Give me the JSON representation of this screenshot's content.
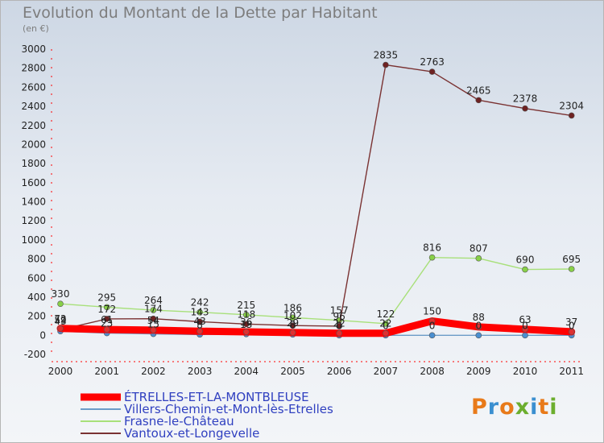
{
  "chart_data": {
    "type": "line",
    "title": "Evolution du Montant de la Dette par Habitant",
    "subtitle": "(en €)",
    "x": [
      "2000",
      "2001",
      "2002",
      "2003",
      "2004",
      "2005",
      "2006",
      "2007",
      "2008",
      "2009",
      "2010",
      "2011"
    ],
    "ylim": [
      -200,
      3000
    ],
    "yticks": [
      -200,
      0,
      200,
      400,
      600,
      800,
      1000,
      1200,
      1400,
      1600,
      1800,
      2000,
      2200,
      2400,
      2600,
      2800,
      3000
    ],
    "grid": false,
    "legend_position": "bottom-left",
    "series": [
      {
        "name": "ÉTRELLES-ET-LA-MONTBLEUSE",
        "color": "#ff0000",
        "marker": "#e03030",
        "width": 9,
        "values": [
          72,
          61,
          54,
          43,
          36,
          29,
          22,
          22,
          150,
          88,
          63,
          37
        ]
      },
      {
        "name": "Villers-Chemin-et-Mont-lès-Etrelles",
        "color": "#6b9bc7",
        "marker": "#4a8fd0",
        "width": 1.4,
        "values": [
          43,
          23,
          15,
          8,
          13,
          8,
          0,
          0,
          0,
          0,
          0,
          0
        ]
      },
      {
        "name": "Frasne-le-Château",
        "color": "#a8e07a",
        "marker": "#88d048",
        "width": 1.4,
        "values": [
          330,
          295,
          264,
          242,
          215,
          186,
          157,
          122,
          816,
          807,
          690,
          695
        ]
      },
      {
        "name": "Vantoux-et-Longevelle",
        "color": "#7a3232",
        "marker": "#6e2222",
        "width": 1.4,
        "values": [
          59,
          172,
          174,
          143,
          118,
          102,
          96,
          2835,
          2763,
          2465,
          2378,
          2304
        ]
      }
    ],
    "labels": [
      {
        "series": 2,
        "text": [
          "330",
          "295",
          "264",
          "242",
          "215",
          "186",
          "157",
          "122",
          "816",
          "807",
          "690",
          "695"
        ]
      },
      {
        "series": 3,
        "text": [
          "59",
          "172",
          "174",
          "143",
          "118",
          "102",
          "96",
          "2835",
          "2763",
          "2465",
          "2378",
          "2304"
        ]
      },
      {
        "series": 0,
        "text": [
          "72",
          "61",
          "54",
          "43",
          "36",
          "29",
          "22",
          "22",
          "150",
          "88",
          "63",
          "37"
        ]
      },
      {
        "series": 1,
        "text": [
          "43",
          "23",
          "15",
          "8",
          "13",
          "8",
          "0",
          "0",
          "0",
          "0",
          "0",
          "0"
        ]
      }
    ]
  },
  "logo": {
    "text": "Proxiti"
  }
}
